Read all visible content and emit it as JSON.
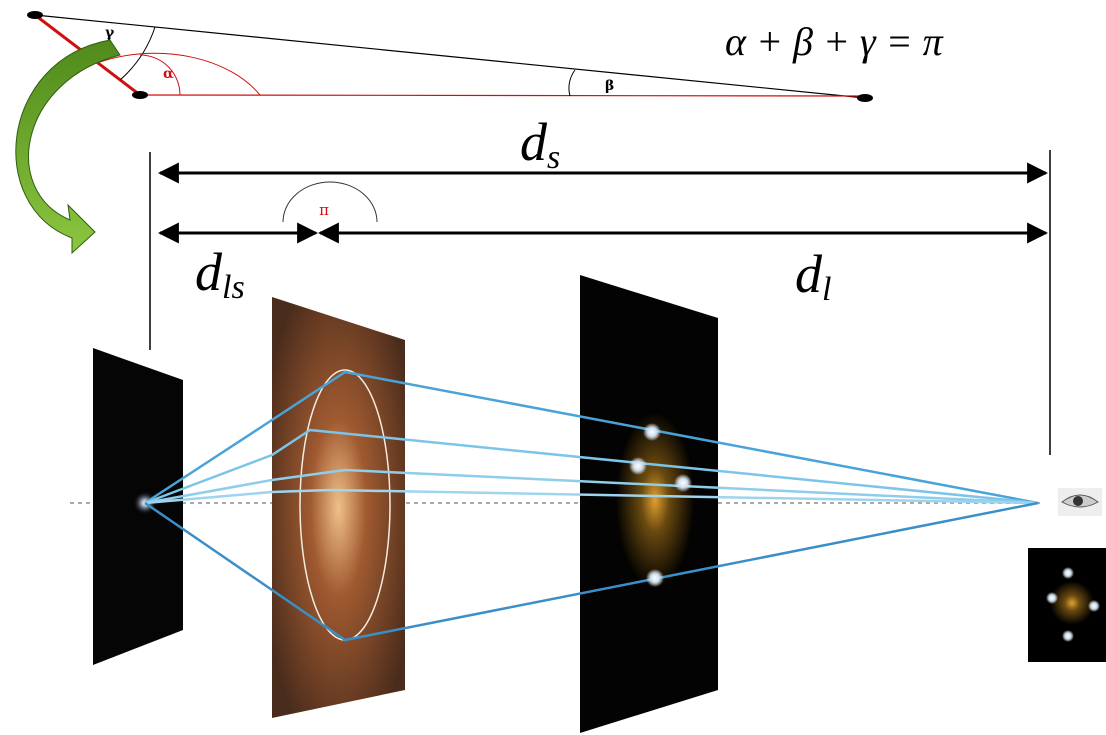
{
  "triangle": {
    "angles": [
      "γ",
      "α",
      "β"
    ],
    "equation": "α + β + γ = π"
  },
  "distances": [
    {
      "symbol": "d",
      "subscript": "s"
    },
    {
      "symbol": "d",
      "subscript": "ls"
    },
    {
      "symbol": "d",
      "subscript": "l"
    }
  ],
  "junction_angle": "π"
}
